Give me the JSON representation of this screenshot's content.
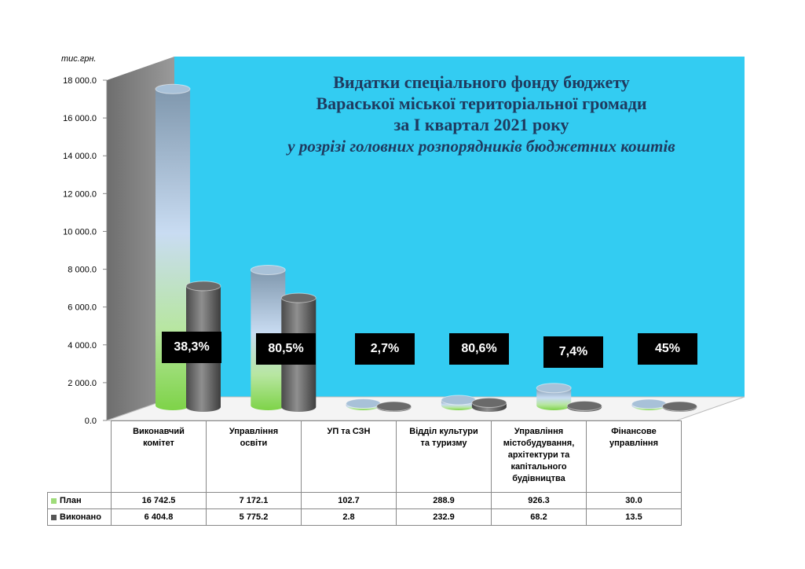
{
  "colors": {
    "wall": "#33ccf2",
    "side_wall": "#808080",
    "plan_top": "#8aaec8",
    "plan_mid": "#c9dbf0",
    "plan_bottom": "#86d64e",
    "exec_dark": "#555555",
    "exec_light": "#9a9a9a",
    "label_box": "#000000",
    "title": "#1f3a5f"
  },
  "chart_data": {
    "type": "bar",
    "title_lines": [
      "Видатки спеціального фонду бюджету",
      "Вараської міської  територіальної громади",
      "за І квартал 2021 року"
    ],
    "subtitle": "у розрізі головних розпорядників бюджетних коштів",
    "unit_label": "тис.грн.",
    "ylim": [
      0,
      18000
    ],
    "yticks": [
      "0.0",
      "2 000.0",
      "4 000.0",
      "6 000.0",
      "8 000.0",
      "10 000.0",
      "12 000.0",
      "14 000.0",
      "16 000.0",
      "18 000.0"
    ],
    "categories": [
      [
        "Виконавчий",
        "комітет"
      ],
      [
        "Управління",
        "освіти"
      ],
      [
        "УП та СЗН"
      ],
      [
        "Відділ культури",
        "та туризму"
      ],
      [
        "Управління",
        "містобудування,",
        "архітектури та",
        "капітального",
        "будівництва"
      ],
      [
        "Фінансове",
        "управління"
      ]
    ],
    "series": [
      {
        "name": "План",
        "values": [
          16742.5,
          7172.1,
          102.7,
          288.9,
          926.3,
          30.0
        ]
      },
      {
        "name": "Виконано",
        "values": [
          6404.8,
          5775.2,
          2.8,
          232.9,
          68.2,
          13.5
        ]
      }
    ],
    "table_values": {
      "plan": [
        "16 742.5",
        "7 172.1",
        "102.7",
        "288.9",
        "926.3",
        "30.0"
      ],
      "exec": [
        "6 404.8",
        "5 775.2",
        "2.8",
        "232.9",
        "68.2",
        "13.5"
      ]
    },
    "percent_labels": [
      "38,3%",
      "80,5%",
      "2,7%",
      "80,6%",
      "7,4%",
      "45%"
    ],
    "legend": "data-table"
  }
}
